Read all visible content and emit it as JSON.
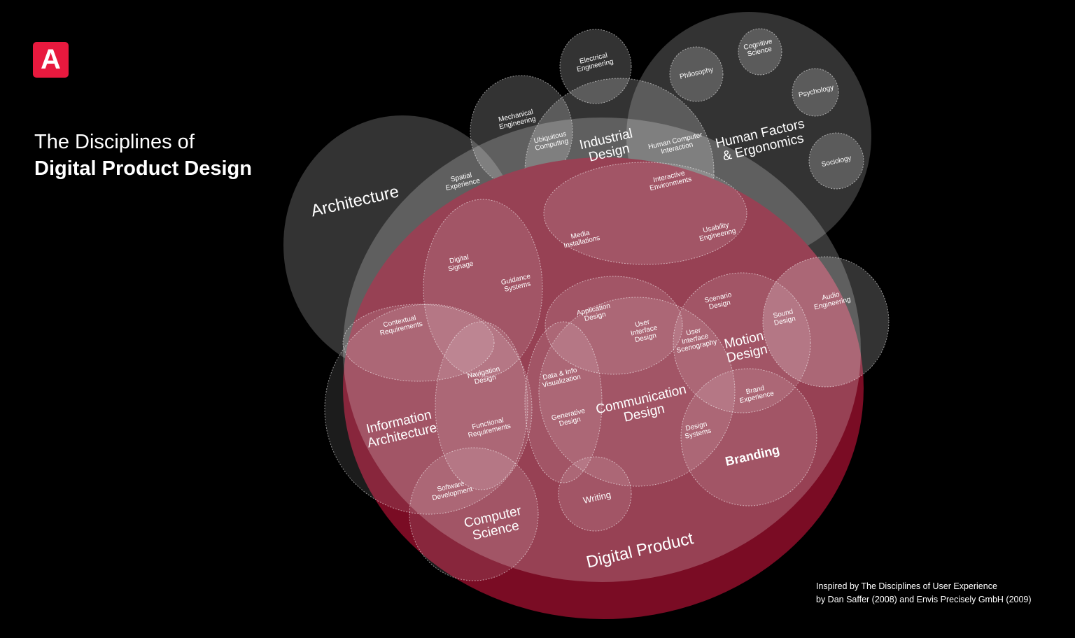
{
  "logo": {
    "letter": "A",
    "color": "#e8193e"
  },
  "title": {
    "line1": "The Disciplines of",
    "line2": "Digital Product Design"
  },
  "credit": {
    "line1": "Inspired by The Disciplines of User Experience",
    "line2": "by Dan Saffer (2008) and Envis Precisely GmbH (2009)"
  },
  "colors": {
    "background": "#000000",
    "digital_product": "#7a0c24",
    "accent": "#e8193e"
  },
  "labels": [
    [
      "Architecture"
    ],
    [
      "Spatial",
      "Experience"
    ],
    [
      "Mechanical",
      "Engineering"
    ],
    [
      "Electrical",
      "Engineering"
    ],
    [
      "Ubiquitous",
      "Computing"
    ],
    [
      "Industrial",
      "Design"
    ],
    [
      "Human Computer",
      "Interaction"
    ],
    [
      "Human Factors",
      "& Ergonomics"
    ],
    [
      "Philosophy"
    ],
    [
      "Cognitive",
      "Science"
    ],
    [
      "Psychology"
    ],
    [
      "Sociology"
    ],
    [
      "Interactive",
      "Environments"
    ],
    [
      "Media",
      "Installations"
    ],
    [
      "Usability",
      "Engineering"
    ],
    [
      "Digital",
      "Signage"
    ],
    [
      "Guidance",
      "Systems"
    ],
    [
      "Contextual",
      "Requirements"
    ],
    [
      "Application",
      "Design"
    ],
    [
      "User",
      "Interface",
      "Design"
    ],
    [
      "Scenario",
      "Design"
    ],
    [
      "User",
      "Interface",
      "Scenography"
    ],
    [
      "Motion",
      "Design"
    ],
    [
      "Sound",
      "Design"
    ],
    [
      "Audio",
      "Engineering"
    ],
    [
      "Navigation",
      "Design"
    ],
    [
      "Data & Info",
      "Visualization"
    ],
    [
      "Information",
      "Architecture"
    ],
    [
      "Functional",
      "Requirements"
    ],
    [
      "Generative",
      "Design"
    ],
    [
      "Communication",
      "Design"
    ],
    [
      "Brand",
      "Experience"
    ],
    [
      "Design",
      "Systems"
    ],
    [
      "Branding"
    ],
    [
      "Software",
      "Development"
    ],
    [
      "Computer",
      "Science"
    ],
    [
      "Writing"
    ],
    [
      "Digital Product"
    ]
  ]
}
